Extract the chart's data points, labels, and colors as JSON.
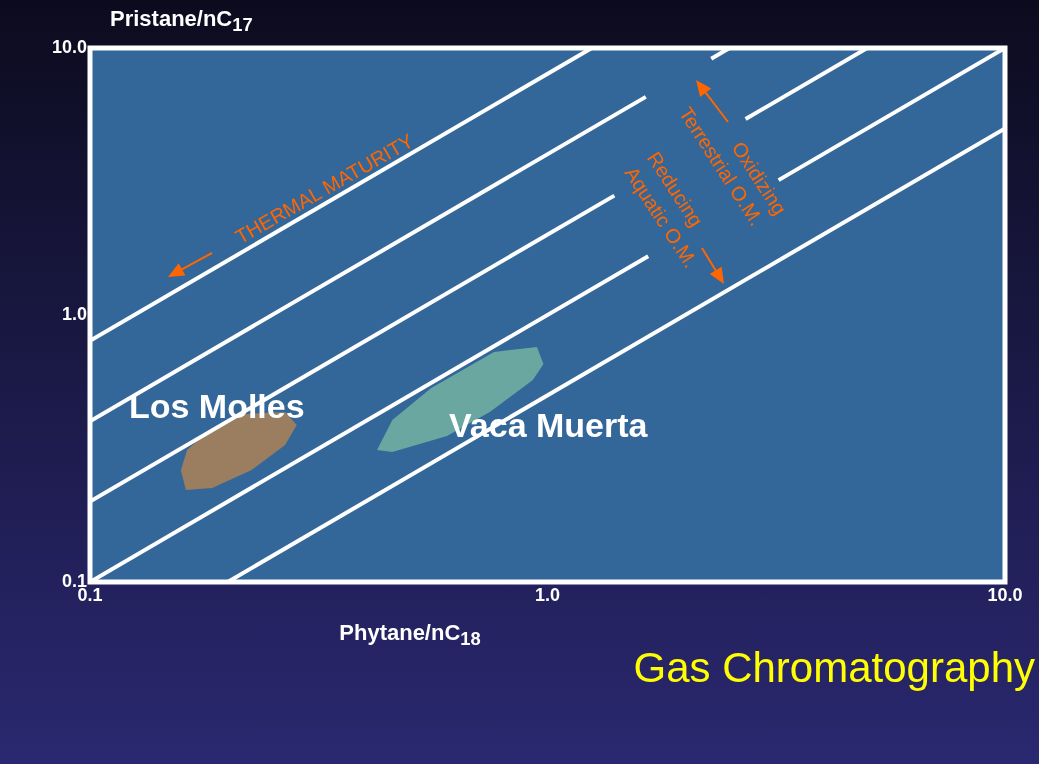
{
  "chart_data": {
    "type": "line",
    "xlabel": "Phytane/nC$_{18}$",
    "ylabel": "Pristane/nC$_{17}$",
    "log": "xy",
    "grid": false,
    "legend": false,
    "marker": "none",
    "xlim": [
      0.1,
      10
    ],
    "ylim": [
      0.1,
      10
    ],
    "xticks": [
      0.1,
      {
        "value": 1,
        "label": "1.0"
      },
      {
        "value": 10,
        "label": "10.0"
      }
    ],
    "yticks": [
      0.1,
      {
        "value": 1,
        "label": "1.0"
      },
      {
        "value": 10,
        "label": "10.0"
      }
    ],
    "series": [
      {
        "color": "#ffffff",
        "x": [
          0.1,
          1.25
        ],
        "values": [
          0.8,
          10
        ]
      },
      {
        "color": "#ffffff",
        "x": [
          0.1,
          1.64
        ],
        "values": [
          0.4,
          6.56
        ]
      },
      {
        "color": "#ffffff",
        "x": [
          2.28,
          2.5
        ],
        "values": [
          9.12,
          10
        ]
      },
      {
        "color": "#ffffff",
        "x": [
          0.1,
          1.4
        ],
        "values": [
          0.2,
          2.8
        ]
      },
      {
        "color": "#ffffff",
        "x": [
          2.71,
          5
        ],
        "values": [
          5.42,
          10
        ]
      },
      {
        "color": "#ffffff",
        "x": [
          0.1,
          1.66
        ],
        "values": [
          0.1,
          1.66
        ]
      },
      {
        "color": "#ffffff",
        "x": [
          3.2,
          10
        ],
        "values": [
          3.2,
          10
        ]
      },
      {
        "color": "#ffffff",
        "x": [
          0.2,
          10
        ],
        "values": [
          0.1,
          5
        ]
      },
      {
        "type": "area",
        "name": "Los Molles",
        "color": "#9b7d5f",
        "x": [
          0.158,
          0.163,
          0.185,
          0.219,
          0.267,
          0.283,
          0.267,
          0.225,
          0.185,
          0.162,
          0.158
        ],
        "values": [
          0.262,
          0.312,
          0.377,
          0.426,
          0.433,
          0.387,
          0.326,
          0.262,
          0.225,
          0.221,
          0.262
        ]
      },
      {
        "type": "area",
        "name": "Vaca Muerta",
        "color": "#6aa7a0",
        "x": [
          0.424,
          0.458,
          0.557,
          0.764,
          0.948,
          0.98,
          0.929,
          0.748,
          0.603,
          0.458,
          0.424
        ],
        "values": [
          0.312,
          0.404,
          0.533,
          0.727,
          0.759,
          0.655,
          0.571,
          0.433,
          0.352,
          0.307,
          0.312
        ]
      }
    ],
    "annotations": [
      "THERMAL MATURITY",
      "Oxidizing",
      "Terrestrial O.M.",
      "Reducing",
      "Aquatic O.M.",
      "Gas Chromatography"
    ]
  }
}
